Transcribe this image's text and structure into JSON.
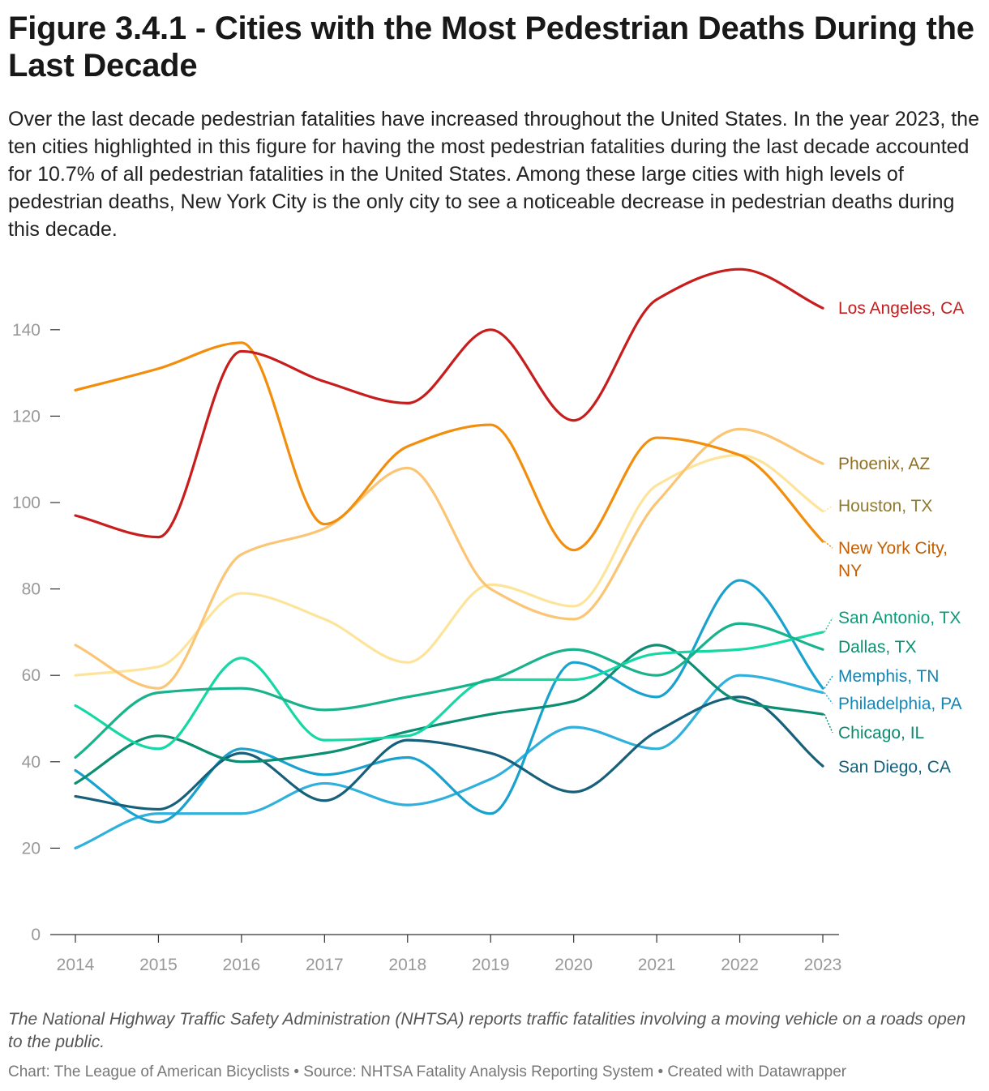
{
  "title": "Figure 3.4.1 - Cities with the Most Pedestrian Deaths During the Last Decade",
  "subtitle": "Over the last decade pedestrian fatalities have increased throughout the United States. In the year 2023, the ten cities highlighted in this figure for having the most pedestrian fatalities during the last decade accounted for 10.7% of all pedestrian fatalities in the United States. Among these large cities with high levels of pedestrian deaths, New York City is the only city to see a noticeable decrease in pedestrian deaths during this decade.",
  "note": "The National Highway Traffic Safety Administration (NHTSA) reports traffic fatalities involving a moving vehicle on a roads open to the public.",
  "source": "Chart: The League of American Bicyclists • Source: NHTSA Fatality Analysis Reporting System • Created with Datawrapper",
  "chart_data": {
    "type": "line",
    "title": "Figure 3.4.1 - Cities with the Most Pedestrian Deaths During the Last Decade",
    "xlabel": "",
    "ylabel": "",
    "x": [
      2014,
      2015,
      2016,
      2017,
      2018,
      2019,
      2020,
      2021,
      2022,
      2023
    ],
    "ylim": [
      0,
      155
    ],
    "yticks": [
      0,
      20,
      40,
      60,
      80,
      100,
      120,
      140
    ],
    "grid": false,
    "legend": "direct labels right",
    "series": [
      {
        "name": "Los Angeles, CA",
        "label_lines": [
          "Los Angeles, CA"
        ],
        "color": "#c71e1d",
        "label_color": "#c71e1d",
        "values": [
          97,
          92,
          135,
          128,
          123,
          140,
          119,
          147,
          154,
          145
        ]
      },
      {
        "name": "New York City, NY",
        "label_lines": [
          "New York City,",
          "NY"
        ],
        "color": "#f28e0b",
        "label_color": "#c55e00",
        "values": [
          126,
          131,
          137,
          95,
          113,
          118,
          89,
          115,
          111,
          91
        ]
      },
      {
        "name": "Phoenix, AZ",
        "label_lines": [
          "Phoenix, AZ"
        ],
        "color": "#fbc576",
        "label_color": "#8e7025",
        "values": [
          67,
          57,
          88,
          94,
          108,
          80,
          73,
          100,
          117,
          109
        ]
      },
      {
        "name": "Houston, TX",
        "label_lines": [
          "Houston, TX"
        ],
        "color": "#fde49a",
        "label_color": "#8e7a30",
        "values": [
          60,
          62,
          79,
          73,
          63,
          81,
          76,
          104,
          111,
          98
        ]
      },
      {
        "name": "San Antonio, TX",
        "label_lines": [
          "San Antonio, TX"
        ],
        "color": "#15d8a4",
        "label_color": "#0b9a78",
        "values": [
          53,
          43,
          64,
          45,
          46,
          59,
          59,
          65,
          66,
          70
        ]
      },
      {
        "name": "Dallas, TX",
        "label_lines": [
          "Dallas, TX"
        ],
        "color": "#18b28c",
        "label_color": "#0b8f70",
        "values": [
          41,
          56,
          57,
          52,
          55,
          59,
          66,
          60,
          72,
          66
        ]
      },
      {
        "name": "Memphis, TN",
        "label_lines": [
          "Memphis, TN"
        ],
        "color": "#1aa2cf",
        "label_color": "#1583b0",
        "values": [
          38,
          26,
          43,
          37,
          41,
          28,
          63,
          55,
          82,
          57
        ]
      },
      {
        "name": "Philadelphia, PA",
        "label_lines": [
          "Philadelphia, PA"
        ],
        "color": "#2fb0dd",
        "label_color": "#1786b4",
        "values": [
          20,
          28,
          28,
          35,
          30,
          36,
          48,
          43,
          60,
          56
        ]
      },
      {
        "name": "Chicago, IL",
        "label_lines": [
          "Chicago, IL"
        ],
        "color": "#0c8e73",
        "label_color": "#0b8a6e",
        "values": [
          35,
          46,
          40,
          42,
          47,
          51,
          54,
          67,
          54,
          51
        ]
      },
      {
        "name": "San Diego, CA",
        "label_lines": [
          "San Diego, CA"
        ],
        "color": "#17607b",
        "label_color": "#14607a",
        "values": [
          32,
          29,
          42,
          31,
          45,
          42,
          33,
          47,
          55,
          39
        ]
      }
    ]
  }
}
